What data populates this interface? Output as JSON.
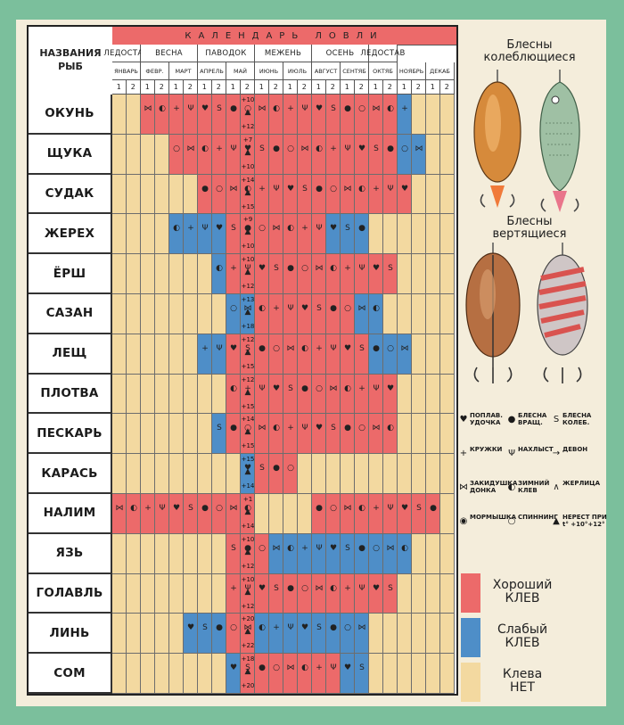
{
  "header": {
    "title": "КАЛЕНДАРЬ ЛОВЛИ",
    "names_caption": "НАЗВАНИЯ\nРЫБ",
    "seasons": [
      "ЛЕДОСТАВ",
      "ВЕСНА",
      "ПАВОДОК",
      "МЕЖЕНЬ",
      "ОСЕНЬ",
      "ЛЕДОСТАВ"
    ],
    "months": [
      "ЯНВАРЬ",
      "ФЕВР.",
      "МАРТ",
      "АПРЕЛЬ",
      "МАЙ",
      "ИЮНЬ",
      "ИЮЛЬ",
      "АВГУСТ",
      "СЕНТЯБ",
      "ОКТЯБ",
      "НОЯБРЬ",
      "ДЕКАБ"
    ],
    "halves": [
      "1",
      "2"
    ]
  },
  "fish": [
    "ОКУНЬ",
    "ЩУКА",
    "СУДАК",
    "ЖЕРЕХ",
    "ЁРШ",
    "САЗАН",
    "ЛЕЩ",
    "ПЛОТВА",
    "ПЕСКАРЬ",
    "КАРАСЬ",
    "НАЛИМ",
    "ЯЗЬ",
    "ГОЛАВЛЬ",
    "ЛИНЬ",
    "СОМ"
  ],
  "colors": {
    "good": "#ec6a6a",
    "weak": "#4e8ec8",
    "none": "#f3d9a0",
    "frame": "#7bbf9c",
    "paper": "#f4eddb"
  },
  "bite_map": [
    "NNRRRRRRRRRRRRRRRRRRBNNN",
    "NNNNRRRRRRRRRRRRRRRRBBNN",
    "NNNNNNRRRRRRRRRRRRRRRNNN",
    "NNNNBBBBRRRRRRRBBBNNNNNN",
    "NNNNNNNBRRRRRRRRRRRRNNNN",
    "NNNNNNNNBBRRRRRRRBBNNNNN",
    "NNNNNNBBRRRRRRRRRRBBBNNN",
    "NNNNNNNNRRRRRRRRRRRRNNNN",
    "NNNNNNNBRRRRRRRRRRRRNNNN",
    "NNNNNNNNNBRRRNNNNNNNNNNN",
    "RRRRRRRRRRNNNNRRRRRRRRRN",
    "NNNNNNNNRRRBBBBBBBBBBNNN",
    "NNNNNNNNRRRRRRRRRRRRNNNN",
    "NNNNNBBBRRBBBBBBBBNNNNNN",
    "NNNNNNNNBRRRRRRRBBNNNNNN"
  ],
  "temps": [
    {
      "row": 0,
      "top": "+10",
      "bottom": "+12"
    },
    {
      "row": 1,
      "top": "+7",
      "bottom": "+10"
    },
    {
      "row": 2,
      "top": "+14",
      "bottom": "+15"
    },
    {
      "row": 3,
      "top": "+9",
      "bottom": "+10"
    },
    {
      "row": 4,
      "top": "+10",
      "bottom": "+12"
    },
    {
      "row": 5,
      "top": "+13",
      "bottom": "+18"
    },
    {
      "row": 6,
      "top": "+12",
      "bottom": "+15"
    },
    {
      "row": 7,
      "top": "+12",
      "bottom": "+15"
    },
    {
      "row": 8,
      "top": "+14",
      "bottom": "+15"
    },
    {
      "row": 9,
      "top": "+15",
      "bottom": "+14"
    },
    {
      "row": 10,
      "top": "+1",
      "bottom": "+14"
    },
    {
      "row": 11,
      "top": "+10",
      "bottom": "+12"
    },
    {
      "row": 12,
      "top": "+10",
      "bottom": "+12"
    },
    {
      "row": 13,
      "top": "+20",
      "bottom": "+22"
    },
    {
      "row": 14,
      "top": "+18",
      "bottom": "+20"
    }
  ],
  "lures": {
    "oscillating_title": "Блесны\nколеблющиеся",
    "spinning_title": "Блесны\nвертящиеся"
  },
  "legend": [
    {
      "icon": "float-rod-icon",
      "glyph": "♥",
      "text": "ПОПЛАВ.\nУДОЧКА"
    },
    {
      "icon": "spinner-lure-icon",
      "glyph": "●",
      "text": "БЛЕСНА\nВРАЩ."
    },
    {
      "icon": "spoon-lure-icon",
      "glyph": "S",
      "text": "БЛЕСНА\nКОЛЕБ."
    },
    {
      "icon": "float-circle-icon",
      "glyph": "+",
      "text": "КРУЖКИ"
    },
    {
      "icon": "fly-icon",
      "glyph": "Ψ",
      "text": "НАХЛЫСТ"
    },
    {
      "icon": "devon-icon",
      "glyph": "→",
      "text": "ДЕВОН"
    },
    {
      "icon": "bottom-rig-icon",
      "glyph": "⋈",
      "text": "ЗАКИДУШКА\nДОНКА"
    },
    {
      "icon": "winter-rod-icon",
      "glyph": "◐",
      "text": "ЗИМНИЙ\nКЛЕВ"
    },
    {
      "icon": "pike-trap-icon",
      "glyph": "∧",
      "text": "ЖЕРЛИЦА"
    },
    {
      "icon": "jig-icon",
      "glyph": "◉",
      "text": "МОРМЫШКА"
    },
    {
      "icon": "spinning-icon",
      "glyph": "○",
      "text": "СПИННИНГ"
    },
    {
      "icon": "spawning-icon",
      "glyph": "▲",
      "text": "НЕРЕСТ ПРИ\nt° +10°+12°"
    }
  ],
  "key": [
    {
      "label": "Хороший\nКЛЕВ",
      "color": "#ec6a6a"
    },
    {
      "label": "Слабый\nКЛЕВ",
      "color": "#4e8ec8"
    },
    {
      "label": "Клева\nНЕТ",
      "color": "#f3d9a0"
    }
  ]
}
